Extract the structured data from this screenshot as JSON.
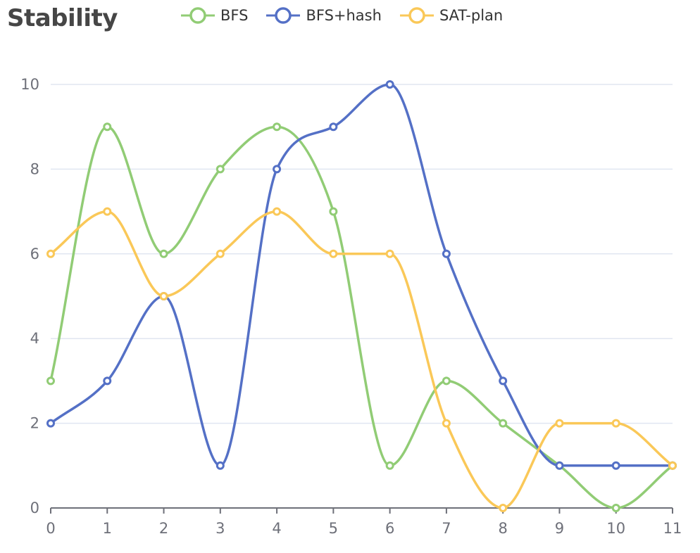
{
  "chart_data": {
    "type": "line",
    "title": "Stability",
    "x": [
      0,
      1,
      2,
      3,
      4,
      5,
      6,
      7,
      8,
      9,
      10,
      11
    ],
    "xlim": [
      0,
      11
    ],
    "ylim": [
      0,
      10
    ],
    "y_ticks": [
      0,
      2,
      4,
      6,
      8,
      10
    ],
    "grid": true,
    "legend_position": "top",
    "smooth": true,
    "series": [
      {
        "name": "BFS",
        "color": "#91cc75",
        "values": [
          3,
          9,
          6,
          8,
          9,
          7,
          1,
          3,
          2,
          1,
          0,
          1
        ]
      },
      {
        "name": "BFS+hash",
        "color": "#5470c6",
        "values": [
          2,
          3,
          5,
          1,
          8,
          9,
          10,
          6,
          3,
          1,
          1,
          1
        ]
      },
      {
        "name": "SAT-plan",
        "color": "#fac858",
        "values": [
          6,
          7,
          5,
          6,
          7,
          6,
          6,
          2,
          0,
          2,
          2,
          1
        ]
      }
    ],
    "axis_color": "#6e7079",
    "grid_color": "#e0e6f1"
  }
}
